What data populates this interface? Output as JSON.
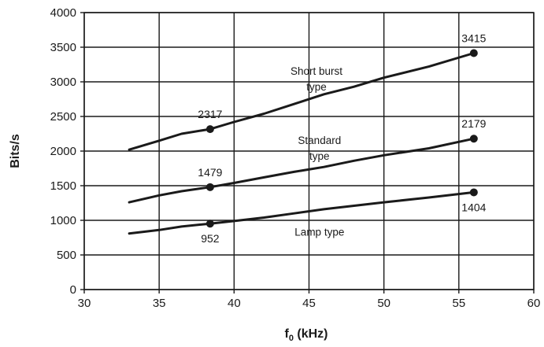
{
  "chart_data": {
    "type": "line",
    "title": "",
    "xlabel": "f",
    "xlabel_subscript": "0",
    "xlabel_suffix": " (kHz)",
    "ylabel": "Bits/s",
    "xlim": [
      30,
      60
    ],
    "ylim": [
      0,
      4000
    ],
    "xticks": [
      30,
      35,
      40,
      45,
      50,
      55,
      60
    ],
    "yticks": [
      0,
      500,
      1000,
      1500,
      2000,
      2500,
      3000,
      3500,
      4000
    ],
    "grid": true,
    "colors": {
      "line": "#1a1a1a",
      "grid": "#1a1a1a",
      "background": "#ffffff"
    },
    "series": [
      {
        "label_lines": [
          "Short burst",
          "type"
        ],
        "x": [
          33,
          35,
          36.5,
          38.4,
          40,
          42,
          44,
          46,
          48,
          50,
          53,
          56
        ],
        "y": [
          2020,
          2150,
          2250,
          2317,
          2420,
          2540,
          2680,
          2820,
          2930,
          3060,
          3220,
          3415
        ],
        "markers": [
          {
            "x": 38.4,
            "y": 2317,
            "label": "2317",
            "label_pos": "above"
          },
          {
            "x": 56,
            "y": 3415,
            "label": "3415",
            "label_pos": "above"
          }
        ]
      },
      {
        "label_lines": [
          "Standard",
          "type"
        ],
        "x": [
          33,
          35,
          36.5,
          38.4,
          40,
          42,
          44,
          46,
          48,
          50,
          53,
          56
        ],
        "y": [
          1260,
          1360,
          1420,
          1479,
          1540,
          1620,
          1700,
          1770,
          1860,
          1940,
          2040,
          2179
        ],
        "markers": [
          {
            "x": 38.4,
            "y": 1479,
            "label": "1479",
            "label_pos": "above"
          },
          {
            "x": 56,
            "y": 2179,
            "label": "2179",
            "label_pos": "above"
          }
        ]
      },
      {
        "label_lines": [
          "Lamp type"
        ],
        "x": [
          33,
          35,
          36.5,
          38.4,
          40,
          42,
          44,
          46,
          48,
          50,
          53,
          56
        ],
        "y": [
          810,
          860,
          910,
          952,
          990,
          1040,
          1100,
          1160,
          1210,
          1260,
          1330,
          1404
        ],
        "markers": [
          {
            "x": 38.4,
            "y": 952,
            "label": "952",
            "label_pos": "below"
          },
          {
            "x": 56,
            "y": 1404,
            "label": "1404",
            "label_pos": "below"
          }
        ]
      }
    ]
  }
}
